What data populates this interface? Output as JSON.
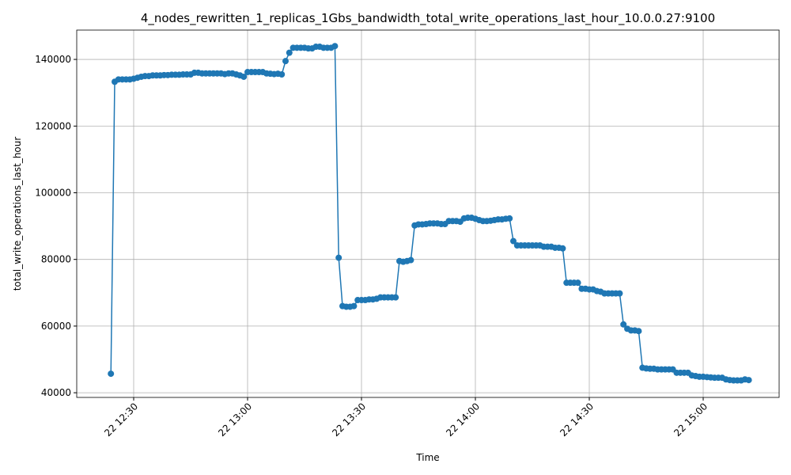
{
  "chart_data": {
    "type": "line",
    "title": "4_nodes_rewritten_1_replicas_1Gbs_bandwidth_total_write_operations_last_hour_10.0.0.27:9100",
    "x_label": "Time",
    "y_label": "total_write_operations_last_hour",
    "x": [
      "22 12:24",
      "22 12:25",
      "22 12:26",
      "22 12:27",
      "22 12:28",
      "22 12:29",
      "22 12:30",
      "22 12:31",
      "22 12:32",
      "22 12:33",
      "22 12:34",
      "22 12:35",
      "22 12:36",
      "22 12:37",
      "22 12:38",
      "22 12:39",
      "22 12:40",
      "22 12:41",
      "22 12:42",
      "22 12:43",
      "22 12:44",
      "22 12:45",
      "22 12:46",
      "22 12:47",
      "22 12:48",
      "22 12:49",
      "22 12:50",
      "22 12:51",
      "22 12:52",
      "22 12:53",
      "22 12:54",
      "22 12:55",
      "22 12:56",
      "22 12:57",
      "22 12:58",
      "22 12:59",
      "22 13:00",
      "22 13:01",
      "22 13:02",
      "22 13:03",
      "22 13:04",
      "22 13:05",
      "22 13:06",
      "22 13:07",
      "22 13:08",
      "22 13:09",
      "22 13:10",
      "22 13:11",
      "22 13:12",
      "22 13:13",
      "22 13:14",
      "22 13:15",
      "22 13:16",
      "22 13:17",
      "22 13:18",
      "22 13:19",
      "22 13:20",
      "22 13:21",
      "22 13:22",
      "22 13:23",
      "22 13:24",
      "22 13:25",
      "22 13:26",
      "22 13:27",
      "22 13:28",
      "22 13:29",
      "22 13:30",
      "22 13:31",
      "22 13:32",
      "22 13:33",
      "22 13:34",
      "22 13:35",
      "22 13:36",
      "22 13:37",
      "22 13:38",
      "22 13:39",
      "22 13:40",
      "22 13:41",
      "22 13:42",
      "22 13:43",
      "22 13:44",
      "22 13:45",
      "22 13:46",
      "22 13:47",
      "22 13:48",
      "22 13:49",
      "22 13:50",
      "22 13:51",
      "22 13:52",
      "22 13:53",
      "22 13:54",
      "22 13:55",
      "22 13:56",
      "22 13:57",
      "22 13:58",
      "22 13:59",
      "22 14:00",
      "22 14:01",
      "22 14:02",
      "22 14:03",
      "22 14:04",
      "22 14:05",
      "22 14:06",
      "22 14:07",
      "22 14:08",
      "22 14:09",
      "22 14:10",
      "22 14:11",
      "22 14:12",
      "22 14:13",
      "22 14:14",
      "22 14:15",
      "22 14:16",
      "22 14:17",
      "22 14:18",
      "22 14:19",
      "22 14:20",
      "22 14:21",
      "22 14:22",
      "22 14:23",
      "22 14:24",
      "22 14:25",
      "22 14:26",
      "22 14:27",
      "22 14:28",
      "22 14:29",
      "22 14:30",
      "22 14:31",
      "22 14:32",
      "22 14:33",
      "22 14:34",
      "22 14:35",
      "22 14:36",
      "22 14:37",
      "22 14:38",
      "22 14:39",
      "22 14:40",
      "22 14:41",
      "22 14:42",
      "22 14:43",
      "22 14:44",
      "22 14:45",
      "22 14:46",
      "22 14:47",
      "22 14:48",
      "22 14:49",
      "22 14:50",
      "22 14:51",
      "22 14:52",
      "22 14:53",
      "22 14:54",
      "22 14:55",
      "22 14:56",
      "22 14:57",
      "22 14:58",
      "22 14:59",
      "22 15:00",
      "22 15:01",
      "22 15:02",
      "22 15:03",
      "22 15:04",
      "22 15:05",
      "22 15:06",
      "22 15:07",
      "22 15:08",
      "22 15:09",
      "22 15:10",
      "22 15:11",
      "22 15:12"
    ],
    "series": [
      {
        "color": "#1f77b4",
        "values": [
          45700,
          133300,
          134000,
          134000,
          134000,
          134000,
          134200,
          134500,
          134800,
          135000,
          135000,
          135200,
          135200,
          135200,
          135300,
          135300,
          135400,
          135400,
          135400,
          135500,
          135500,
          135500,
          136000,
          136000,
          135800,
          135800,
          135800,
          135800,
          135800,
          135800,
          135600,
          135800,
          135800,
          135500,
          135200,
          134800,
          136200,
          136200,
          136200,
          136200,
          136200,
          135800,
          135700,
          135600,
          135700,
          135500,
          139500,
          142000,
          143500,
          143500,
          143500,
          143500,
          143300,
          143300,
          143800,
          143800,
          143500,
          143500,
          143500,
          144000,
          80500,
          66000,
          65800,
          65800,
          66000,
          67800,
          67800,
          67800,
          68000,
          68000,
          68200,
          68600,
          68600,
          68600,
          68600,
          68600,
          79500,
          79300,
          79500,
          79800,
          90200,
          90500,
          90500,
          90600,
          90800,
          90800,
          90800,
          90600,
          90600,
          91500,
          91500,
          91500,
          91300,
          92300,
          92500,
          92500,
          92200,
          91800,
          91500,
          91500,
          91600,
          91800,
          92000,
          92000,
          92200,
          92300,
          85500,
          84200,
          84200,
          84200,
          84200,
          84200,
          84200,
          84200,
          83800,
          83800,
          83800,
          83500,
          83500,
          83300,
          73000,
          73000,
          73000,
          73000,
          71200,
          71200,
          71000,
          71000,
          70500,
          70300,
          69800,
          69800,
          69800,
          69800,
          69800,
          60500,
          59200,
          58700,
          58700,
          58500,
          47500,
          47300,
          47200,
          47200,
          47000,
          47000,
          47000,
          47000,
          47000,
          46000,
          46000,
          46000,
          46000,
          45200,
          45000,
          44800,
          44800,
          44700,
          44600,
          44500,
          44500,
          44500,
          44000,
          43800,
          43700,
          43700,
          43700,
          44000,
          43800
        ]
      }
    ],
    "xlim": [
      "22 12:15",
      "22 15:20"
    ],
    "xticks": [
      "22 12:30",
      "22 13:00",
      "22 13:30",
      "22 14:00",
      "22 14:30",
      "22 15:00"
    ],
    "ylim": [
      38600,
      148800
    ],
    "yticks": [
      40000,
      60000,
      80000,
      100000,
      120000,
      140000
    ],
    "grid": true
  }
}
